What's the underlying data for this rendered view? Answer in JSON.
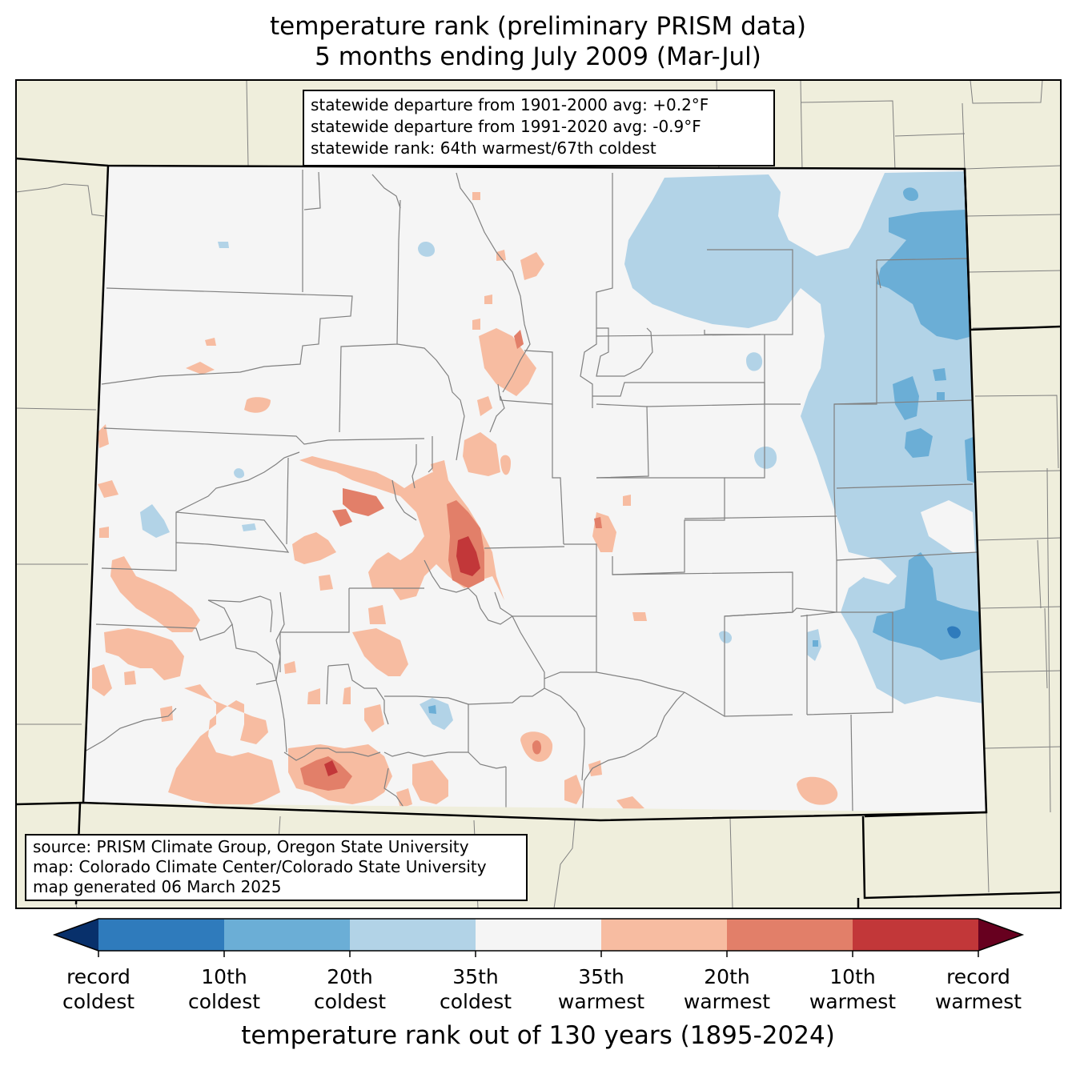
{
  "title": {
    "line1": "temperature rank (preliminary PRISM data)",
    "line2": "5 months ending July 2009 (Mar-Jul)"
  },
  "stats": {
    "line1": "statewide departure from 1901-2000 avg: +0.2°F",
    "line2": "statewide departure from 1991-2020 avg: -0.9°F",
    "line3": "statewide rank: 64th warmest/67th coldest"
  },
  "source": {
    "line1": "source: PRISM Climate Group, Oregon State University",
    "line2": "map: Colorado Climate Center/Colorado State University",
    "line3": "map generated 06 March 2025"
  },
  "legend": {
    "title": "temperature rank out of 130 years (1895-2024)",
    "classes": [
      {
        "color": "#08306b",
        "label": "record coldest (extension)"
      },
      {
        "color": "#2f7bbc",
        "label": "record coldest to 10th coldest"
      },
      {
        "color": "#6baed6",
        "label": "10th to 20th coldest"
      },
      {
        "color": "#b2d3e7",
        "label": "20th to 35th coldest"
      },
      {
        "color": "#f5f5f5",
        "label": "35th coldest to 35th warmest"
      },
      {
        "color": "#f7bca1",
        "label": "35th to 20th warmest"
      },
      {
        "color": "#e27f69",
        "label": "20th to 10th warmest"
      },
      {
        "color": "#c23739",
        "label": "10th warmest to record warmest"
      },
      {
        "color": "#67001f",
        "label": "record warmest (extension)"
      }
    ],
    "ticks": [
      {
        "line1": "record",
        "line2": "coldest"
      },
      {
        "line1": "10th",
        "line2": "coldest"
      },
      {
        "line1": "20th",
        "line2": "coldest"
      },
      {
        "line1": "35th",
        "line2": "coldest"
      },
      {
        "line1": "35th",
        "line2": "warmest"
      },
      {
        "line1": "20th",
        "line2": "warmest"
      },
      {
        "line1": "10th",
        "line2": "warmest"
      },
      {
        "line1": "record",
        "line2": "warmest"
      }
    ]
  },
  "colors": {
    "land_outside": "#efeedc",
    "state_fill": "#f5f5f5",
    "cold_light": "#b2d3e7",
    "cold_mid": "#6baed6",
    "cold_dark": "#2f7bbc",
    "warm_light": "#f7bca1",
    "warm_mid": "#e27f69",
    "warm_dark": "#c23739",
    "county_line": "#808080",
    "state_line": "#000000"
  }
}
